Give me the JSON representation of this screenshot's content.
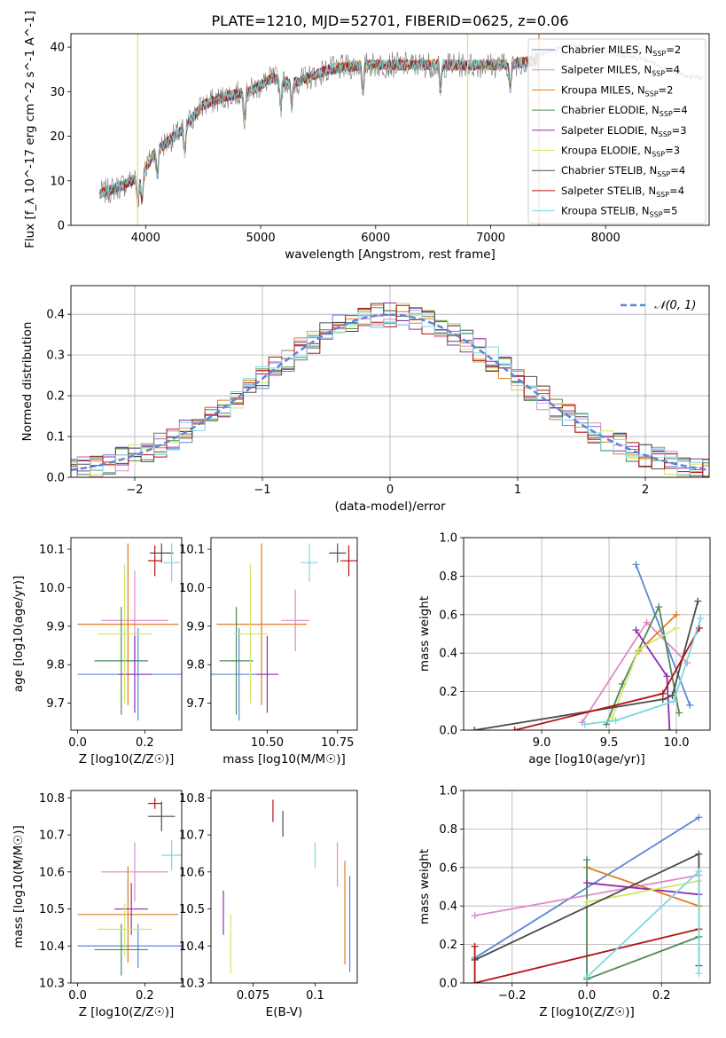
{
  "figure_title": "PLATE=1210, MJD=52701, FIBERID=0625, z=0.06",
  "models": [
    {
      "name": "Chabrier MILES",
      "nssp": "2",
      "color": "#5b87d6"
    },
    {
      "name": "Salpeter MILES",
      "nssp": "4",
      "color": "#e08ac6"
    },
    {
      "name": "Kroupa MILES",
      "nssp": "2",
      "color": "#e07b22"
    },
    {
      "name": "Chabrier ELODIE",
      "nssp": "4",
      "color": "#4f8a55"
    },
    {
      "name": "Salpeter ELODIE",
      "nssp": "3",
      "color": "#8d2db0"
    },
    {
      "name": "Kroupa ELODIE",
      "nssp": "3",
      "color": "#cfe86a"
    },
    {
      "name": "Chabrier STELIB",
      "nssp": "4",
      "color": "#4d4d4d"
    },
    {
      "name": "Salpeter STELIB",
      "nssp": "4",
      "color": "#b31313"
    },
    {
      "name": "Kroupa STELIB",
      "nssp": "5",
      "color": "#7ad9de"
    }
  ],
  "chart_data": [
    {
      "id": "spectrum",
      "type": "line",
      "xlabel": "wavelength [Angstrom, rest frame]",
      "ylabel": "Flux [f_λ 10^-17 erg cm^-2 s^-1 A^-1]",
      "xlim": [
        3350,
        8900
      ],
      "ylim": [
        0,
        43
      ],
      "xticks": [
        4000,
        5000,
        6000,
        7000,
        8000
      ],
      "yticks": [
        0,
        10,
        20,
        30,
        40
      ],
      "legend_position": "right",
      "continuum": {
        "x": [
          3600,
          3800,
          3950,
          4100,
          4300,
          4500,
          4700,
          4900,
          5100,
          5300,
          5600,
          5900,
          6200,
          6500,
          6800,
          7100,
          7400
        ],
        "y": [
          7,
          9,
          11,
          17,
          21,
          27,
          29,
          30,
          33,
          32,
          35,
          36,
          36,
          36,
          36,
          36,
          37
        ]
      },
      "observed_extension": {
        "x": [
          7400,
          7700,
          8000,
          8300,
          8500,
          8700,
          8850
        ],
        "y": [
          38,
          40.5,
          39,
          37.5,
          35.5,
          33.5,
          33
        ]
      }
    },
    {
      "id": "residuals",
      "type": "bar",
      "xlabel": "(data-model)/error",
      "ylabel": "Normed distribution",
      "xlim": [
        -2.5,
        2.5
      ],
      "ylim": [
        0,
        0.47
      ],
      "xticks": [
        -2,
        -1,
        0,
        1,
        2
      ],
      "yticks": [
        0,
        0.1,
        0.2,
        0.3,
        0.4
      ],
      "grid": true,
      "reference_curve": {
        "label": "𝒩(0, 1)",
        "mean": 0,
        "sigma": 1
      }
    },
    {
      "id": "age-vs-Z",
      "type": "scatter",
      "xlabel": "Z [log10(Z/Z☉)]",
      "ylabel": "age  [log10(age/yr)]",
      "xlim": [
        -0.02,
        0.31
      ],
      "ylim": [
        9.63,
        10.13
      ],
      "xticks": [
        0.0,
        0.2
      ],
      "yticks": [
        9.7,
        9.8,
        9.9,
        10.0,
        10.1
      ],
      "points": [
        {
          "model": 0,
          "x": 0.18,
          "y": 9.775,
          "xerr": 0.18,
          "yerr": 0.12
        },
        {
          "model": 1,
          "x": 0.17,
          "y": 9.915,
          "xerr": 0.1,
          "yerr": 0.13
        },
        {
          "model": 2,
          "x": 0.15,
          "y": 9.905,
          "xerr": 0.15,
          "yerr": 0.21
        },
        {
          "model": 3,
          "x": 0.13,
          "y": 9.81,
          "xerr": 0.08,
          "yerr": 0.14
        },
        {
          "model": 4,
          "x": 0.17,
          "y": 9.775,
          "xerr": 0.05,
          "yerr": 0.1
        },
        {
          "model": 5,
          "x": 0.14,
          "y": 9.88,
          "xerr": 0.08,
          "yerr": 0.18
        },
        {
          "model": 6,
          "x": 0.25,
          "y": 10.09,
          "xerr": 0.035,
          "yerr": 0.025
        },
        {
          "model": 7,
          "x": 0.23,
          "y": 10.07,
          "xerr": 0.02,
          "yerr": 0.04
        },
        {
          "model": 8,
          "x": 0.28,
          "y": 10.065,
          "xerr": 0.025,
          "yerr": 0.05
        }
      ]
    },
    {
      "id": "age-vs-mass",
      "type": "scatter",
      "xlabel": "mass [log10(M/M☉)]",
      "ylabel": "",
      "xlim": [
        10.3,
        10.82
      ],
      "ylim": [
        9.63,
        10.13
      ],
      "xticks": [
        10.5,
        10.75
      ],
      "yticks": [
        9.7,
        9.8,
        9.9,
        10.0,
        10.1
      ],
      "points": [
        {
          "model": 0,
          "x": 10.4,
          "y": 9.775,
          "xerr": 0.1,
          "yerr": 0.12
        },
        {
          "model": 1,
          "x": 10.6,
          "y": 9.915,
          "xerr": 0.05,
          "yerr": 0.08
        },
        {
          "model": 2,
          "x": 10.48,
          "y": 9.905,
          "xerr": 0.16,
          "yerr": 0.21
        },
        {
          "model": 3,
          "x": 10.39,
          "y": 9.81,
          "xerr": 0.06,
          "yerr": 0.14
        },
        {
          "model": 4,
          "x": 10.5,
          "y": 9.775,
          "xerr": 0.04,
          "yerr": 0.1
        },
        {
          "model": 5,
          "x": 10.44,
          "y": 9.88,
          "xerr": 0.06,
          "yerr": 0.18
        },
        {
          "model": 6,
          "x": 10.75,
          "y": 10.09,
          "xerr": 0.03,
          "yerr": 0.025
        },
        {
          "model": 7,
          "x": 10.79,
          "y": 10.07,
          "xerr": 0.03,
          "yerr": 0.04
        },
        {
          "model": 8,
          "x": 10.65,
          "y": 10.065,
          "xerr": 0.03,
          "yerr": 0.05
        }
      ]
    },
    {
      "id": "weight-vs-age",
      "type": "line",
      "xlabel": "age  [log10(age/yr)]",
      "ylabel": "mass weight",
      "xlim": [
        8.42,
        10.25
      ],
      "ylim": [
        0.0,
        1.0
      ],
      "xticks": [
        9.0,
        9.5,
        10.0
      ],
      "yticks": [
        0.0,
        0.2,
        0.4,
        0.6,
        0.8,
        1.0
      ],
      "grid": true,
      "series": [
        {
          "model": 0,
          "x": [
            9.7,
            10.1
          ],
          "y": [
            0.86,
            0.13
          ]
        },
        {
          "model": 1,
          "x": [
            9.3,
            9.78,
            10.08
          ],
          "y": [
            0.04,
            0.56,
            0.35
          ]
        },
        {
          "model": 2,
          "x": [
            9.72,
            10.0
          ],
          "y": [
            0.41,
            0.6
          ]
        },
        {
          "model": 3,
          "x": [
            9.48,
            9.6,
            9.87,
            10.02
          ],
          "y": [
            0.03,
            0.24,
            0.64,
            0.09
          ]
        },
        {
          "model": 4,
          "x": [
            9.7,
            9.93,
            9.95
          ],
          "y": [
            0.52,
            0.28,
            0.0
          ]
        },
        {
          "model": 5,
          "x": [
            9.52,
            9.72,
            10.0
          ],
          "y": [
            0.06,
            0.42,
            0.53
          ]
        },
        {
          "model": 6,
          "x": [
            8.5,
            9.9,
            9.97,
            10.16
          ],
          "y": [
            0.0,
            0.16,
            0.18,
            0.67
          ]
        },
        {
          "model": 7,
          "x": [
            8.8,
            9.9,
            10.17
          ],
          "y": [
            0.0,
            0.19,
            0.53
          ]
        },
        {
          "model": 8,
          "x": [
            9.32,
            9.55,
            9.98,
            10.18
          ],
          "y": [
            0.03,
            0.05,
            0.15,
            0.58
          ]
        }
      ]
    },
    {
      "id": "mass-vs-Z",
      "type": "scatter",
      "xlabel": "Z [log10(Z/Z☉)]",
      "ylabel": "mass [log10(M/M☉)]",
      "xlim": [
        -0.02,
        0.31
      ],
      "ylim": [
        10.3,
        10.82
      ],
      "xticks": [
        0.0,
        0.2
      ],
      "yticks": [
        10.3,
        10.4,
        10.5,
        10.6,
        10.7,
        10.8
      ],
      "points": [
        {
          "model": 0,
          "x": 0.18,
          "y": 10.4,
          "xerr": 0.18,
          "yerr": 0.06
        },
        {
          "model": 1,
          "x": 0.17,
          "y": 10.6,
          "xerr": 0.1,
          "yerr": 0.08
        },
        {
          "model": 2,
          "x": 0.15,
          "y": 10.485,
          "xerr": 0.15,
          "yerr": 0.13
        },
        {
          "model": 3,
          "x": 0.13,
          "y": 10.39,
          "xerr": 0.08,
          "yerr": 0.07
        },
        {
          "model": 4,
          "x": 0.16,
          "y": 10.5,
          "xerr": 0.05,
          "yerr": 0.07
        },
        {
          "model": 5,
          "x": 0.14,
          "y": 10.445,
          "xerr": 0.08,
          "yerr": 0.07
        },
        {
          "model": 6,
          "x": 0.25,
          "y": 10.75,
          "xerr": 0.04,
          "yerr": 0.04
        },
        {
          "model": 7,
          "x": 0.23,
          "y": 10.785,
          "xerr": 0.02,
          "yerr": 0.015
        },
        {
          "model": 8,
          "x": 0.28,
          "y": 10.645,
          "xerr": 0.03,
          "yerr": 0.04
        }
      ]
    },
    {
      "id": "mass-vs-ebv",
      "type": "scatter",
      "xlabel": "E(B-V)",
      "ylabel": "",
      "xlim": [
        0.058,
        0.117
      ],
      "ylim": [
        10.3,
        10.82
      ],
      "xticks": [
        0.075,
        0.1
      ],
      "yticks": [
        10.3,
        10.4,
        10.5,
        10.6,
        10.7,
        10.8
      ],
      "points": [
        {
          "model": 0,
          "x": 0.114,
          "y": 10.46,
          "xerr": 0,
          "yerr": 0.13
        },
        {
          "model": 1,
          "x": 0.109,
          "y": 10.62,
          "xerr": 0,
          "yerr": 0.06
        },
        {
          "model": 2,
          "x": 0.112,
          "y": 10.49,
          "xerr": 0,
          "yerr": 0.14
        },
        {
          "model": 4,
          "x": 0.063,
          "y": 10.49,
          "xerr": 0,
          "yerr": 0.06
        },
        {
          "model": 5,
          "x": 0.066,
          "y": 10.405,
          "xerr": 0,
          "yerr": 0.08
        },
        {
          "model": 6,
          "x": 0.087,
          "y": 10.73,
          "xerr": 0,
          "yerr": 0.035
        },
        {
          "model": 7,
          "x": 0.083,
          "y": 10.765,
          "xerr": 0,
          "yerr": 0.03
        },
        {
          "model": 8,
          "x": 0.1,
          "y": 10.645,
          "xerr": 0,
          "yerr": 0.035
        }
      ]
    },
    {
      "id": "weight-vs-Z",
      "type": "line",
      "xlabel": "Z [log10(Z/Z☉)]",
      "ylabel": "mass weight",
      "xlim": [
        -0.33,
        0.33
      ],
      "ylim": [
        0.0,
        1.0
      ],
      "xticks": [
        -0.2,
        0.0,
        0.2
      ],
      "yticks": [
        0.0,
        0.2,
        0.4,
        0.6,
        0.8,
        1.0
      ],
      "grid": true,
      "series": [
        {
          "model": 0,
          "x": [
            -0.3,
            0.3
          ],
          "y": [
            0.13,
            0.86
          ]
        },
        {
          "model": 1,
          "x": [
            -0.3,
            0.3
          ],
          "y": [
            0.35,
            0.56
          ]
        },
        {
          "model": 2,
          "x": [
            0.0,
            0.3
          ],
          "y": [
            0.6,
            0.4
          ]
        },
        {
          "model": 3,
          "x": [
            0.0,
            0.0,
            0.3
          ],
          "y": [
            0.64,
            0.02,
            0.24
          ]
        },
        {
          "model": 4,
          "x": [
            0.0,
            0.3
          ],
          "y": [
            0.52,
            0.46
          ]
        },
        {
          "model": 5,
          "x": [
            0.0,
            0.3
          ],
          "y": [
            0.42,
            0.53
          ]
        },
        {
          "model": 6,
          "x": [
            -0.3,
            0.3,
            0.3
          ],
          "y": [
            0.12,
            0.67,
            0.09
          ]
        },
        {
          "model": 7,
          "x": [
            -0.3,
            -0.3,
            0.3
          ],
          "y": [
            0.19,
            0.0,
            0.28
          ]
        },
        {
          "model": 8,
          "x": [
            0.0,
            0.3,
            0.3
          ],
          "y": [
            0.03,
            0.58,
            0.05
          ]
        }
      ]
    }
  ]
}
